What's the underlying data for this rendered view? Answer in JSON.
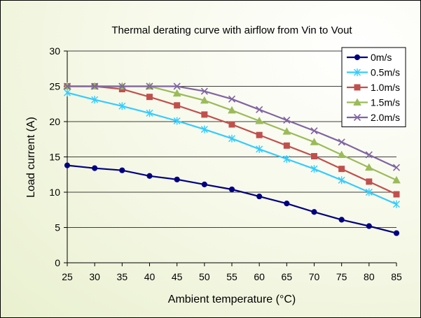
{
  "chart_data": {
    "type": "line",
    "title": "Thermal derating curve with airflow from Vin to Vout",
    "xlabel": "Ambient temperature (°C)",
    "ylabel": "Load current (A)",
    "x": [
      25,
      30,
      35,
      40,
      45,
      50,
      55,
      60,
      65,
      70,
      75,
      80,
      85
    ],
    "xlim": [
      25,
      85
    ],
    "ylim": [
      0,
      30
    ],
    "xticks": [
      25,
      30,
      35,
      40,
      45,
      50,
      55,
      60,
      65,
      70,
      75,
      80,
      85
    ],
    "yticks": [
      0,
      5,
      10,
      15,
      20,
      25,
      30
    ],
    "grid": "horizontal",
    "legend_position": "top-right",
    "series": [
      {
        "name": "0m/s",
        "color": "#000080",
        "marker": "circle",
        "values": [
          13.8,
          13.4,
          13.1,
          12.3,
          11.8,
          11.1,
          10.4,
          9.4,
          8.4,
          7.2,
          6.1,
          5.2,
          4.2
        ]
      },
      {
        "name": "0.5m/s",
        "color": "#33ccff",
        "marker": "asterisk",
        "values": [
          24.1,
          23.1,
          22.2,
          21.2,
          20.1,
          18.9,
          17.6,
          16.1,
          14.7,
          13.3,
          11.7,
          10.0,
          8.3
        ]
      },
      {
        "name": "1.0m/s",
        "color": "#c0504d",
        "marker": "square",
        "values": [
          25.0,
          25.0,
          24.6,
          23.5,
          22.3,
          21.0,
          19.6,
          18.1,
          16.6,
          15.1,
          13.3,
          11.5,
          9.7
        ]
      },
      {
        "name": "1.5m/s",
        "color": "#9bbb59",
        "marker": "triangle",
        "values": [
          25.0,
          25.0,
          25.0,
          25.0,
          24.0,
          23.0,
          21.6,
          20.1,
          18.6,
          17.1,
          15.3,
          13.5,
          11.7
        ]
      },
      {
        "name": "2.0m/s",
        "color": "#8064a2",
        "marker": "x",
        "values": [
          25.0,
          25.0,
          25.0,
          25.0,
          25.0,
          24.3,
          23.2,
          21.7,
          20.2,
          18.7,
          17.1,
          15.3,
          13.5
        ]
      }
    ]
  }
}
